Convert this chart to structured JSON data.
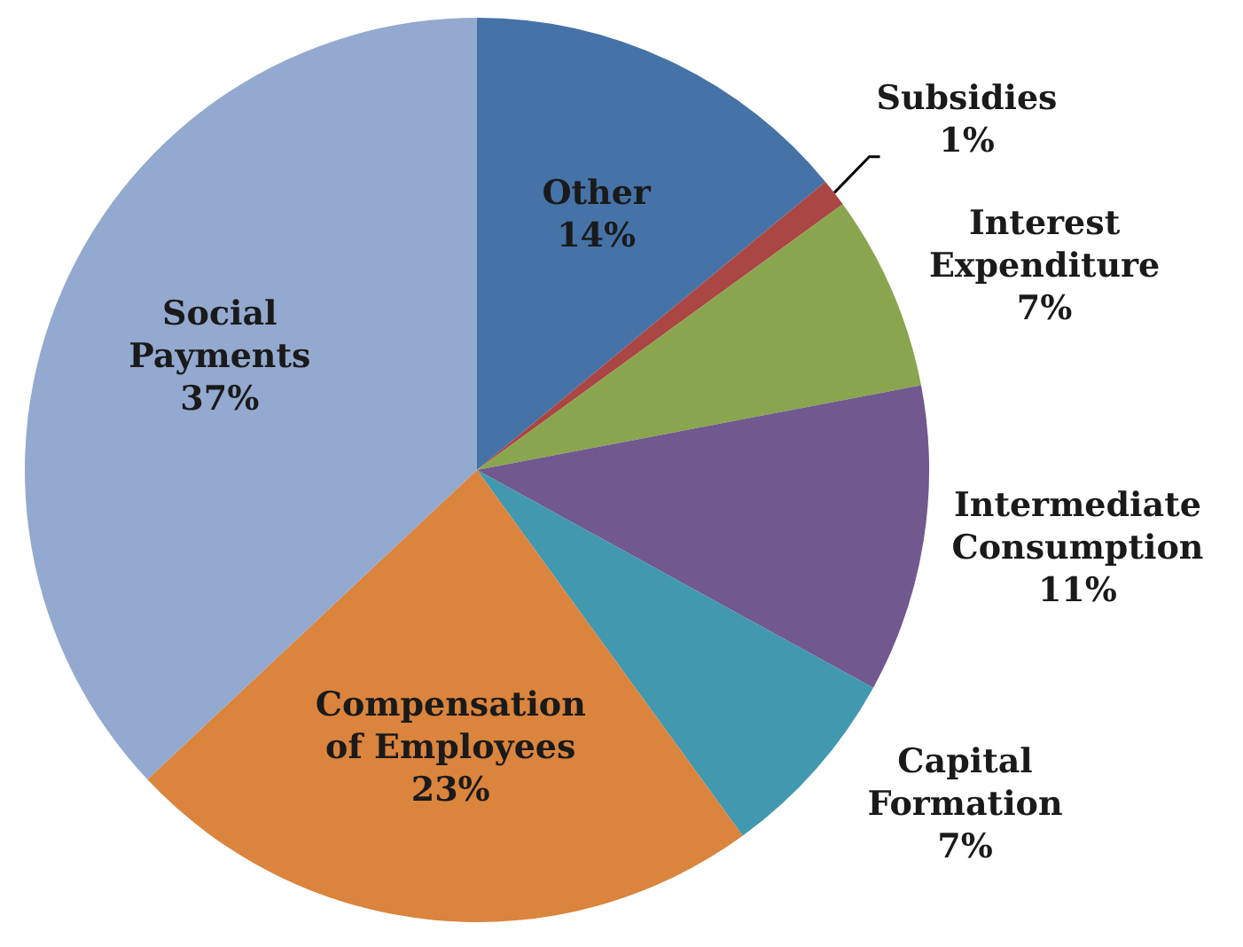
{
  "chart_data": {
    "type": "pie",
    "categories": [
      "Other",
      "Subsidies",
      "Interest Expenditure",
      "Intermediate Consumption",
      "Capital Formation",
      "Compensation of Employees",
      "Social Payments"
    ],
    "values": [
      14,
      1,
      7,
      11,
      7,
      23,
      37
    ],
    "colors": [
      "#4572a7",
      "#aa4643",
      "#89a54e",
      "#71588f",
      "#4198af",
      "#db843d",
      "#93a9cf"
    ],
    "value_labels": [
      "14%",
      "1%",
      "7%",
      "11%",
      "7%",
      "23%",
      "37%"
    ]
  }
}
